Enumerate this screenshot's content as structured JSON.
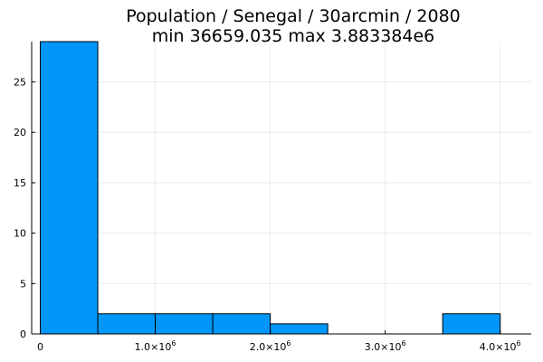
{
  "chart_data": {
    "type": "bar",
    "title_line1": "Population / Senegal / 30arcmin / 2080",
    "title_line2": "min 36659.035  max 3.883384e6",
    "xlabel": "",
    "ylabel": "",
    "bin_edges": [
      0,
      500000,
      1000000,
      1500000,
      2000000,
      2500000,
      3000000,
      3500000,
      4000000
    ],
    "values": [
      29,
      2,
      2,
      2,
      1,
      0,
      0,
      2
    ],
    "xlim": [
      -75000,
      4270000
    ],
    "ylim": [
      0,
      29
    ],
    "x_ticks": [
      {
        "value": 0,
        "mantissa": "0",
        "exp": ""
      },
      {
        "value": 1000000,
        "mantissa": "1.0×10",
        "exp": "6"
      },
      {
        "value": 2000000,
        "mantissa": "2.0×10",
        "exp": "6"
      },
      {
        "value": 3000000,
        "mantissa": "3.0×10",
        "exp": "6"
      },
      {
        "value": 4000000,
        "mantissa": "4.0×10",
        "exp": "6"
      }
    ],
    "y_ticks": [
      0,
      5,
      10,
      15,
      20,
      25
    ],
    "bar_color": "#0097f9",
    "grid": true,
    "legend": "none"
  }
}
